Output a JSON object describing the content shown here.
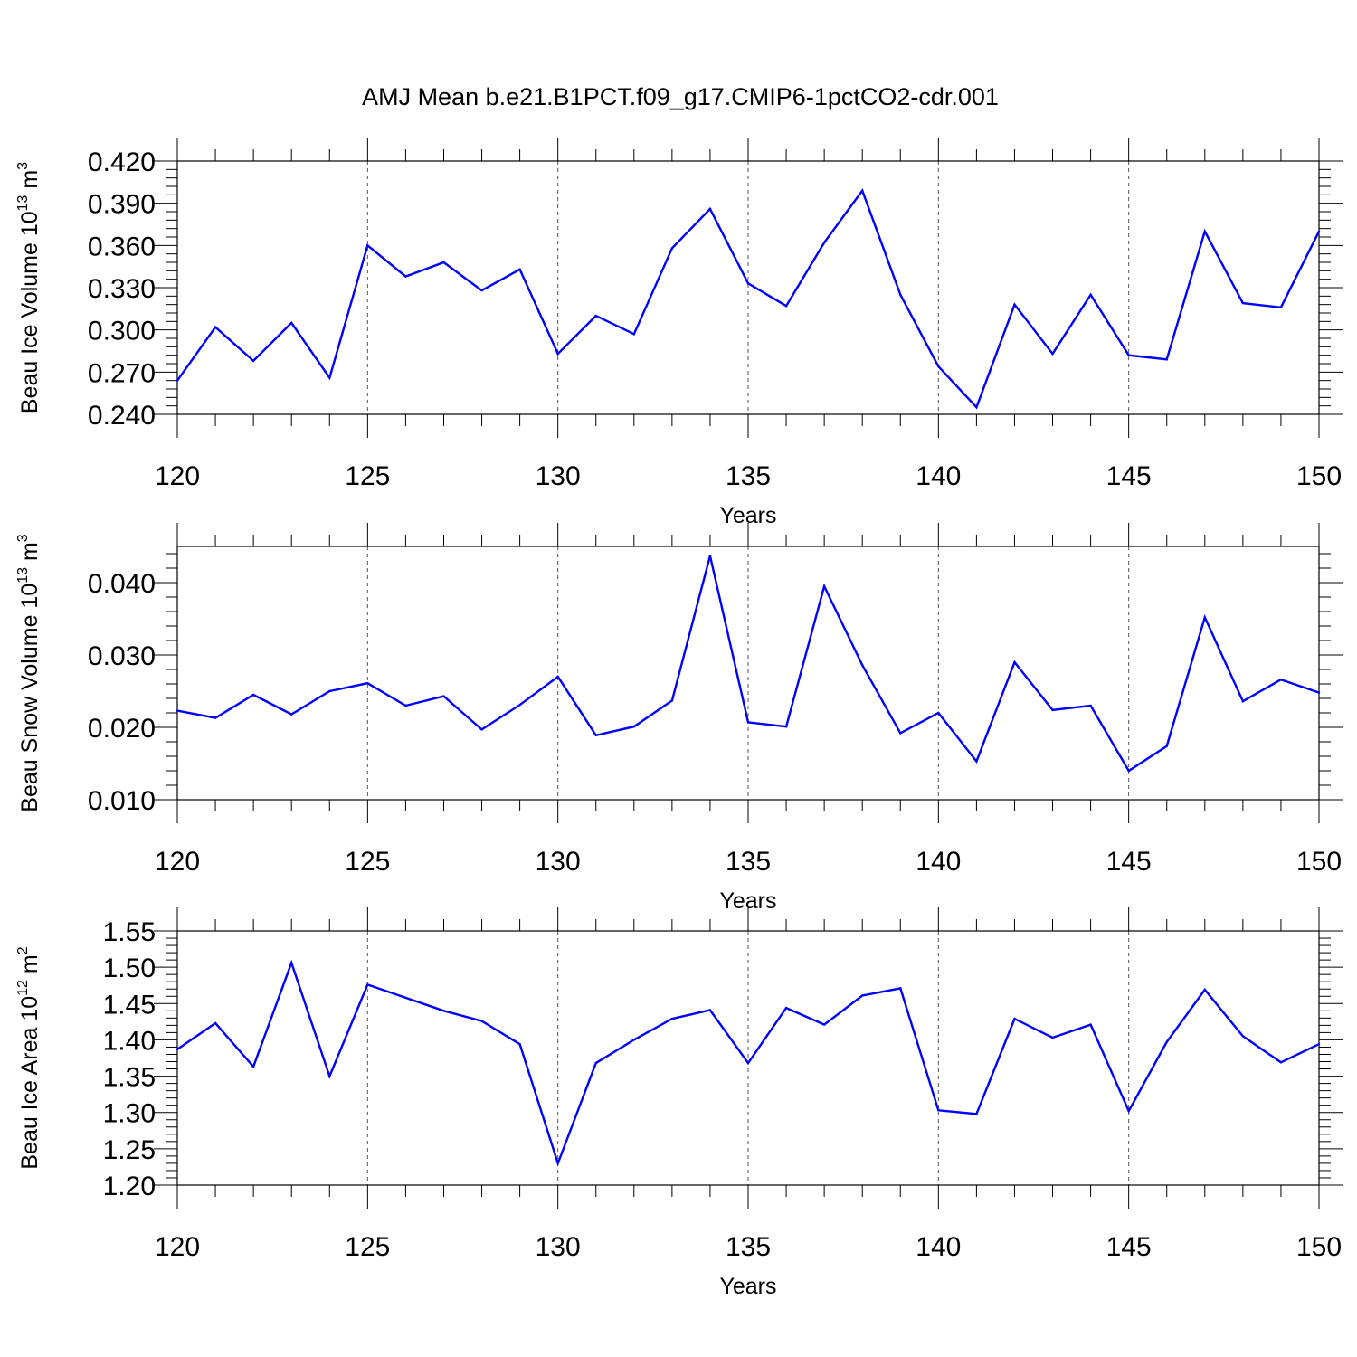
{
  "title": "AMJ Mean b.e21.B1PCT.f09_g17.CMIP6-1pctCO2-cdr.001",
  "colors": {
    "line": "#0000ff",
    "axis": "#000000",
    "grid": "#555555"
  },
  "chart_data": [
    {
      "type": "line",
      "xlabel": "Years",
      "ylabel": {
        "main": "Beau Ice Volume 10",
        "exp": "13",
        "unit": " m",
        "unit_exp": "3"
      },
      "xlim": [
        120,
        150
      ],
      "ylim": [
        0.24,
        0.42
      ],
      "xticks": [
        "120",
        "125",
        "130",
        "135",
        "140",
        "145",
        "150"
      ],
      "yticks": [
        "0.240",
        "0.270",
        "0.300",
        "0.330",
        "0.360",
        "0.390",
        "0.420"
      ],
      "ytick_values": [
        0.24,
        0.27,
        0.3,
        0.33,
        0.36,
        0.39,
        0.42
      ],
      "grid": "dashed vertical at major x ticks",
      "series": [
        {
          "x": [
            120,
            121,
            122,
            123,
            124,
            125,
            126,
            127,
            128,
            129,
            130,
            131,
            132,
            133,
            134,
            135,
            136,
            137,
            138,
            139,
            140,
            141,
            142,
            143,
            144,
            145,
            146,
            147,
            148,
            149,
            150
          ],
          "values": [
            0.264,
            0.302,
            0.278,
            0.305,
            0.266,
            0.36,
            0.338,
            0.348,
            0.328,
            0.343,
            0.283,
            0.31,
            0.297,
            0.358,
            0.386,
            0.333,
            0.317,
            0.362,
            0.399,
            0.325,
            0.274,
            0.245,
            0.318,
            0.283,
            0.325,
            0.282,
            0.279,
            0.37,
            0.319,
            0.316,
            0.37
          ]
        }
      ]
    },
    {
      "type": "line",
      "xlabel": "Years",
      "ylabel": {
        "main": "Beau Snow Volume 10",
        "exp": "13",
        "unit": " m",
        "unit_exp": "3"
      },
      "xlim": [
        120,
        150
      ],
      "ylim": [
        0.01,
        0.045
      ],
      "xticks": [
        "120",
        "125",
        "130",
        "135",
        "140",
        "145",
        "150"
      ],
      "yticks": [
        "0.010",
        "0.020",
        "0.030",
        "0.040"
      ],
      "ytick_values": [
        0.01,
        0.02,
        0.03,
        0.04
      ],
      "grid": "dashed vertical at major x ticks",
      "series": [
        {
          "x": [
            120,
            121,
            122,
            123,
            124,
            125,
            126,
            127,
            128,
            129,
            130,
            131,
            132,
            133,
            134,
            135,
            136,
            137,
            138,
            139,
            140,
            141,
            142,
            143,
            144,
            145,
            146,
            147,
            148,
            149,
            150
          ],
          "values": [
            0.0223,
            0.0213,
            0.0245,
            0.0218,
            0.025,
            0.0261,
            0.023,
            0.0243,
            0.0197,
            0.0231,
            0.027,
            0.0189,
            0.0201,
            0.0237,
            0.0437,
            0.0207,
            0.0201,
            0.0395,
            0.0286,
            0.0192,
            0.022,
            0.0153,
            0.029,
            0.0224,
            0.023,
            0.014,
            0.0174,
            0.0352,
            0.0236,
            0.0266,
            0.0248
          ]
        }
      ]
    },
    {
      "type": "line",
      "xlabel": "Years",
      "ylabel": {
        "main": "Beau Ice Area 10",
        "exp": "12",
        "unit": " m",
        "unit_exp": "2"
      },
      "xlim": [
        120,
        150
      ],
      "ylim": [
        1.2,
        1.55
      ],
      "xticks": [
        "120",
        "125",
        "130",
        "135",
        "140",
        "145",
        "150"
      ],
      "yticks": [
        "1.20",
        "1.25",
        "1.30",
        "1.35",
        "1.40",
        "1.45",
        "1.50",
        "1.55"
      ],
      "ytick_values": [
        1.2,
        1.25,
        1.3,
        1.35,
        1.4,
        1.45,
        1.5,
        1.55
      ],
      "grid": "dashed vertical at major x ticks",
      "series": [
        {
          "x": [
            120,
            121,
            122,
            123,
            124,
            125,
            126,
            127,
            128,
            129,
            130,
            131,
            132,
            133,
            134,
            135,
            136,
            137,
            138,
            139,
            140,
            141,
            142,
            143,
            144,
            145,
            146,
            147,
            148,
            149,
            150
          ],
          "values": [
            1.387,
            1.423,
            1.363,
            1.506,
            1.35,
            1.476,
            1.458,
            1.44,
            1.426,
            1.394,
            1.23,
            1.368,
            1.4,
            1.429,
            1.441,
            1.368,
            1.444,
            1.421,
            1.461,
            1.471,
            1.303,
            1.298,
            1.429,
            1.403,
            1.421,
            1.302,
            1.397,
            1.469,
            1.405,
            1.369,
            1.394
          ]
        }
      ]
    }
  ]
}
